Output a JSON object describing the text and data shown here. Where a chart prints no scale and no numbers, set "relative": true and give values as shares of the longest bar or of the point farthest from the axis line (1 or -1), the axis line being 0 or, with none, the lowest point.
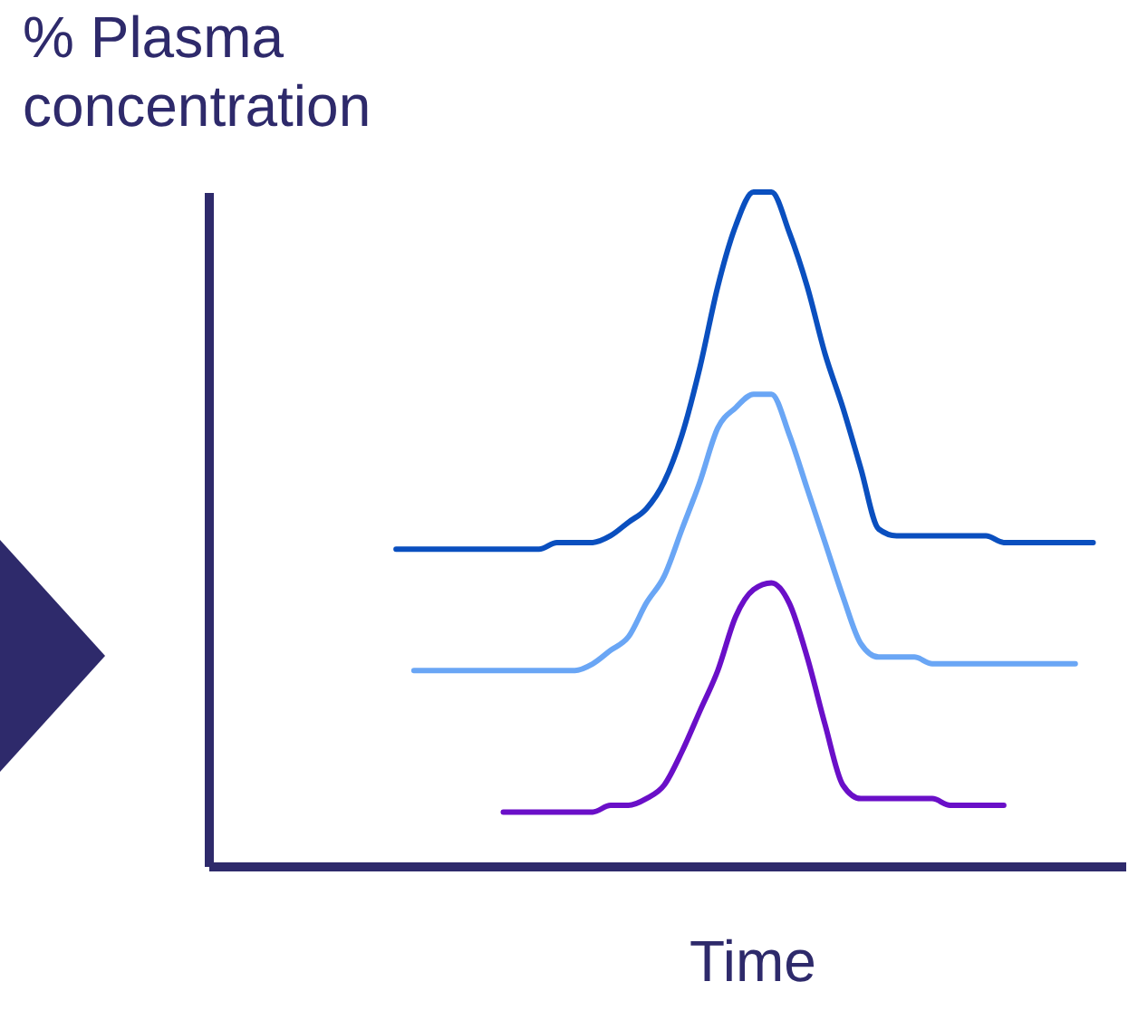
{
  "chart_data": {
    "type": "line",
    "relative": true,
    "ylabel": "% Plasma concentration",
    "xlabel": "Time",
    "tick_labels": false,
    "categories": [
      null,
      null,
      null,
      null,
      null,
      null,
      null,
      null,
      null,
      null,
      null,
      null,
      null,
      null,
      null,
      null,
      null,
      null,
      null,
      null,
      null,
      null,
      null,
      null,
      null,
      null,
      null,
      null,
      null,
      null,
      null,
      null,
      null,
      null,
      null,
      null,
      null,
      null,
      null,
      null,
      null,
      null,
      null,
      null,
      null,
      null,
      null,
      null,
      null,
      null,
      null
    ],
    "series": [
      {
        "color": "#0a4fbf",
        "values": [
          null,
          null,
          null,
          null,
          null,
          null,
          null,
          null,
          null,
          null,
          0.47,
          0.47,
          0.47,
          0.47,
          0.47,
          0.47,
          0.47,
          0.47,
          0.47,
          0.48,
          0.48,
          0.48,
          0.49,
          0.51,
          0.53,
          0.57,
          0.64,
          0.74,
          0.86,
          0.95,
          1,
          1,
          0.94,
          0.86,
          0.76,
          0.68,
          0.59,
          0.5,
          0.49,
          0.49,
          0.49,
          0.49,
          0.49,
          0.49,
          0.48,
          0.48,
          0.48,
          0.48,
          0.48,
          0.48,
          null
        ]
      },
      {
        "color": "#6aa6f5",
        "values": [
          null,
          null,
          null,
          null,
          null,
          null,
          null,
          null,
          null,
          null,
          null,
          0.29,
          0.29,
          0.29,
          0.29,
          0.29,
          0.29,
          0.29,
          0.29,
          0.29,
          0.29,
          0.3,
          0.32,
          0.34,
          0.39,
          0.43,
          0.5,
          0.57,
          0.65,
          0.68,
          0.7,
          0.7,
          0.64,
          0.56,
          0.48,
          0.4,
          0.33,
          0.31,
          0.31,
          0.31,
          0.3,
          0.3,
          0.3,
          0.3,
          0.3,
          0.3,
          0.3,
          0.3,
          0.3,
          null,
          null
        ]
      },
      {
        "color": "#6a0fc8",
        "values": [
          null,
          null,
          null,
          null,
          null,
          null,
          null,
          null,
          null,
          null,
          null,
          null,
          null,
          null,
          null,
          null,
          0.08,
          0.08,
          0.08,
          0.08,
          0.08,
          0.08,
          0.09,
          0.09,
          0.1,
          0.12,
          0.17,
          0.23,
          0.29,
          0.37,
          0.41,
          0.42,
          0.39,
          0.31,
          0.21,
          0.12,
          0.1,
          0.1,
          0.1,
          0.1,
          0.1,
          0.09,
          0.09,
          0.09,
          0.09,
          null,
          null,
          null,
          null,
          null,
          null
        ]
      }
    ]
  }
}
